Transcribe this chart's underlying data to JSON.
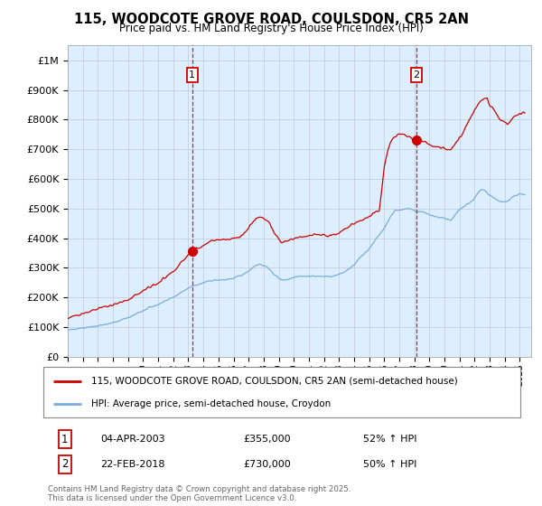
{
  "title": "115, WOODCOTE GROVE ROAD, COULSDON, CR5 2AN",
  "subtitle": "Price paid vs. HM Land Registry's House Price Index (HPI)",
  "legend_line1": "115, WOODCOTE GROVE ROAD, COULSDON, CR5 2AN (semi-detached house)",
  "legend_line2": "HPI: Average price, semi-detached house, Croydon",
  "sale1_date": "04-APR-2003",
  "sale1_price": 355000,
  "sale1_label": "52% ↑ HPI",
  "sale2_date": "22-FEB-2018",
  "sale2_price": 730000,
  "sale2_label": "50% ↑ HPI",
  "sale1_x": 2003.26,
  "sale2_x": 2018.14,
  "ylabel_ticks": [
    "£0",
    "£100K",
    "£200K",
    "£300K",
    "£400K",
    "£500K",
    "£600K",
    "£700K",
    "£800K",
    "£900K",
    "£1M"
  ],
  "ytick_vals": [
    0,
    100000,
    200000,
    300000,
    400000,
    500000,
    600000,
    700000,
    800000,
    900000,
    1000000
  ],
  "ylim": [
    0,
    1050000
  ],
  "red_color": "#cc0000",
  "blue_color": "#7aacdc",
  "background_color": "#ddeeff",
  "grid_color": "#c0c8d8",
  "footnote": "Contains HM Land Registry data © Crown copyright and database right 2025.\nThis data is licensed under the Open Government Licence v3.0."
}
